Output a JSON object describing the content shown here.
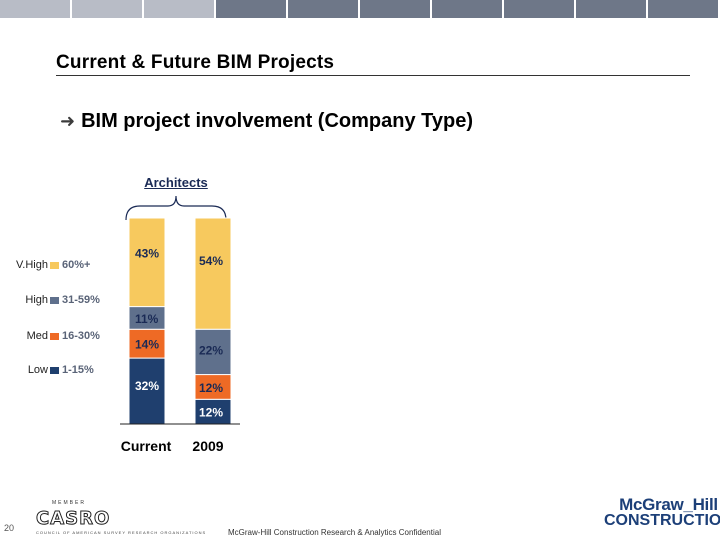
{
  "header": {
    "title": "Current & Future BIM Projects",
    "subtitle": "BIM project involvement (Company Type)"
  },
  "chart_data": {
    "type": "bar",
    "stacked": true,
    "group_label": "Architects",
    "categories": [
      "Current",
      "2009"
    ],
    "series": [
      {
        "name": "Low",
        "range": "1-15%",
        "values": [
          32,
          12
        ],
        "labels": [
          "32%",
          "12%"
        ],
        "color": "#1f3f6e"
      },
      {
        "name": "Med",
        "range": "16-30%",
        "values": [
          14,
          12
        ],
        "labels": [
          "14%",
          "12%"
        ],
        "color": "#ee6a25"
      },
      {
        "name": "High",
        "range": "31-59%",
        "values": [
          11,
          22
        ],
        "labels": [
          "11%",
          "22%"
        ],
        "color": "#5f708c"
      },
      {
        "name": "V.High",
        "range": "60%+",
        "values": [
          43,
          54
        ],
        "labels": [
          "43%",
          "54%"
        ],
        "color": "#f7c95e"
      }
    ],
    "legend": [
      {
        "level": "V.High",
        "range": "60%+",
        "color": "#f7c95e"
      },
      {
        "level": "High",
        "range": "31-59%",
        "color": "#5f708c"
      },
      {
        "level": "Med",
        "range": "16-30%",
        "color": "#ee6a25"
      },
      {
        "level": "Low",
        "range": "1-15%",
        "color": "#1f3f6e"
      }
    ],
    "ylim": [
      0,
      100
    ]
  },
  "footer": {
    "page_number": "20",
    "text": "McGraw-Hill Construction Research & Analytics Confidential",
    "casro_member": "MEMBER",
    "casro_logo": "CASRO",
    "casro_tagline": "COUNCIL OF AMERICAN SURVEY RESEARCH ORGANIZATIONS",
    "brand_line1": "McGraw_Hill",
    "brand_line2": "CONSTRUCTION"
  }
}
